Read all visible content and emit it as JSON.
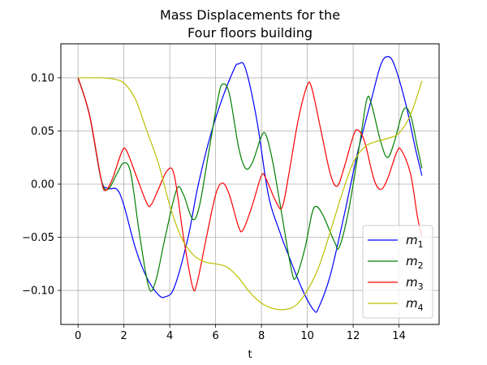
{
  "chart_data": {
    "type": "line",
    "title_line1": "Mass Displacements for the",
    "title_line2": "Four floors building",
    "xlabel": "t",
    "ylabel": "",
    "xlim": [
      -0.75,
      15.75
    ],
    "ylim": [
      -0.132,
      0.132
    ],
    "xticks": [
      0,
      2,
      4,
      6,
      8,
      10,
      12,
      14
    ],
    "yticks": [
      0.1,
      0.05,
      0.0,
      -0.05,
      -0.1
    ],
    "ytick_labels": [
      "0.10",
      "0.05",
      "0.00",
      "−0.05",
      "−0.10"
    ],
    "grid": true,
    "legend_position": "lower-right",
    "series": [
      {
        "name": "m1",
        "base": "m",
        "sub": "1",
        "color": "#0000ff",
        "points": [
          [
            0,
            0.1
          ],
          [
            0.5,
            0.065
          ],
          [
            1,
            0.005
          ],
          [
            1.3,
            -0.004
          ],
          [
            1.7,
            -0.005
          ],
          [
            2,
            -0.02
          ],
          [
            2.5,
            -0.06
          ],
          [
            3,
            -0.088
          ],
          [
            3.5,
            -0.104
          ],
          [
            3.8,
            -0.106
          ],
          [
            4.2,
            -0.097
          ],
          [
            4.8,
            -0.05
          ],
          [
            5.2,
            -0.005
          ],
          [
            5.7,
            0.04
          ],
          [
            6.2,
            0.075
          ],
          [
            6.8,
            0.108
          ],
          [
            7,
            0.113
          ],
          [
            7.3,
            0.109
          ],
          [
            7.8,
            0.06
          ],
          [
            8.3,
            -0.01
          ],
          [
            8.8,
            -0.045
          ],
          [
            9.2,
            -0.068
          ],
          [
            9.8,
            -0.1
          ],
          [
            10.3,
            -0.119
          ],
          [
            10.5,
            -0.116
          ],
          [
            11,
            -0.086
          ],
          [
            11.6,
            -0.03
          ],
          [
            12.2,
            0.03
          ],
          [
            12.8,
            0.08
          ],
          [
            13.2,
            0.112
          ],
          [
            13.5,
            0.12
          ],
          [
            13.8,
            0.112
          ],
          [
            14.3,
            0.075
          ],
          [
            14.7,
            0.035
          ],
          [
            15,
            0.008
          ]
        ]
      },
      {
        "name": "m2",
        "base": "m",
        "sub": "2",
        "color": "#008000",
        "points": [
          [
            0,
            0.1
          ],
          [
            0.5,
            0.065
          ],
          [
            1,
            0.005
          ],
          [
            1.3,
            -0.005
          ],
          [
            1.7,
            0.01
          ],
          [
            2,
            0.02
          ],
          [
            2.3,
            0.01
          ],
          [
            2.7,
            -0.05
          ],
          [
            3.1,
            -0.098
          ],
          [
            3.4,
            -0.09
          ],
          [
            3.8,
            -0.05
          ],
          [
            4.3,
            -0.005
          ],
          [
            4.6,
            -0.01
          ],
          [
            5,
            -0.033
          ],
          [
            5.3,
            -0.02
          ],
          [
            5.7,
            0.03
          ],
          [
            6.1,
            0.08
          ],
          [
            6.3,
            0.094
          ],
          [
            6.6,
            0.085
          ],
          [
            7,
            0.035
          ],
          [
            7.3,
            0.015
          ],
          [
            7.6,
            0.02
          ],
          [
            8,
            0.045
          ],
          [
            8.2,
            0.046
          ],
          [
            8.5,
            0.02
          ],
          [
            8.9,
            -0.03
          ],
          [
            9.3,
            -0.08
          ],
          [
            9.5,
            -0.088
          ],
          [
            9.9,
            -0.06
          ],
          [
            10.2,
            -0.028
          ],
          [
            10.4,
            -0.021
          ],
          [
            10.7,
            -0.03
          ],
          [
            11.2,
            -0.055
          ],
          [
            11.4,
            -0.059
          ],
          [
            11.8,
            -0.025
          ],
          [
            12.3,
            0.04
          ],
          [
            12.6,
            0.08
          ],
          [
            12.8,
            0.075
          ],
          [
            13.2,
            0.04
          ],
          [
            13.5,
            0.025
          ],
          [
            13.8,
            0.04
          ],
          [
            14.2,
            0.07
          ],
          [
            14.5,
            0.065
          ],
          [
            14.8,
            0.035
          ],
          [
            15,
            0.015
          ]
        ]
      },
      {
        "name": "m3",
        "base": "m",
        "sub": "3",
        "color": "#ff0000",
        "points": [
          [
            0,
            0.1
          ],
          [
            0.5,
            0.065
          ],
          [
            1,
            0.005
          ],
          [
            1.2,
            -0.006
          ],
          [
            1.5,
            0.005
          ],
          [
            1.9,
            0.03
          ],
          [
            2.1,
            0.032
          ],
          [
            2.5,
            0.01
          ],
          [
            3,
            -0.018
          ],
          [
            3.2,
            -0.019
          ],
          [
            3.5,
            -0.005
          ],
          [
            3.9,
            0.013
          ],
          [
            4.2,
            0.008
          ],
          [
            4.6,
            -0.05
          ],
          [
            5,
            -0.097
          ],
          [
            5.2,
            -0.092
          ],
          [
            5.6,
            -0.05
          ],
          [
            6,
            -0.01
          ],
          [
            6.3,
            0.001
          ],
          [
            6.6,
            -0.01
          ],
          [
            7,
            -0.04
          ],
          [
            7.2,
            -0.043
          ],
          [
            7.6,
            -0.02
          ],
          [
            8,
            0.008
          ],
          [
            8.2,
            0.005
          ],
          [
            8.6,
            -0.015
          ],
          [
            8.9,
            -0.022
          ],
          [
            9.2,
            0.01
          ],
          [
            9.6,
            0.06
          ],
          [
            10,
            0.093
          ],
          [
            10.2,
            0.09
          ],
          [
            10.6,
            0.05
          ],
          [
            11,
            0.01
          ],
          [
            11.3,
            -0.002
          ],
          [
            11.6,
            0.015
          ],
          [
            12,
            0.045
          ],
          [
            12.2,
            0.051
          ],
          [
            12.5,
            0.04
          ],
          [
            12.9,
            0.005
          ],
          [
            13.2,
            -0.005
          ],
          [
            13.5,
            0.005
          ],
          [
            13.9,
            0.03
          ],
          [
            14.1,
            0.032
          ],
          [
            14.5,
            0.01
          ],
          [
            14.8,
            -0.03
          ],
          [
            15,
            -0.05
          ]
        ]
      },
      {
        "name": "m4",
        "base": "m",
        "sub": "4",
        "color": "#bfbf00",
        "points": [
          [
            0,
            0.1
          ],
          [
            0.5,
            0.1
          ],
          [
            1,
            0.1
          ],
          [
            1.5,
            0.099
          ],
          [
            2,
            0.095
          ],
          [
            2.5,
            0.08
          ],
          [
            3,
            0.05
          ],
          [
            3.5,
            0.02
          ],
          [
            4,
            -0.02
          ],
          [
            4.5,
            -0.05
          ],
          [
            5,
            -0.066
          ],
          [
            5.5,
            -0.073
          ],
          [
            6,
            -0.075
          ],
          [
            6.5,
            -0.078
          ],
          [
            7,
            -0.088
          ],
          [
            7.5,
            -0.102
          ],
          [
            8,
            -0.112
          ],
          [
            8.5,
            -0.117
          ],
          [
            9,
            -0.118
          ],
          [
            9.5,
            -0.114
          ],
          [
            10,
            -0.1
          ],
          [
            10.5,
            -0.078
          ],
          [
            11,
            -0.045
          ],
          [
            11.5,
            -0.01
          ],
          [
            12,
            0.02
          ],
          [
            12.5,
            0.035
          ],
          [
            13,
            0.04
          ],
          [
            13.5,
            0.043
          ],
          [
            14,
            0.048
          ],
          [
            14.5,
            0.065
          ],
          [
            15,
            0.097
          ]
        ]
      }
    ]
  }
}
